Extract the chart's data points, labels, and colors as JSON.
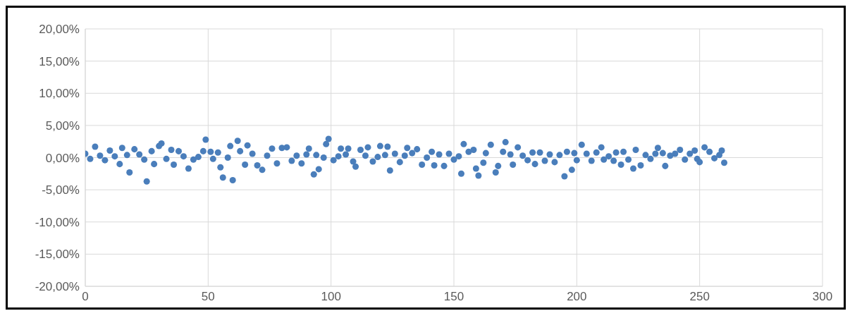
{
  "chart_data": {
    "type": "scatter",
    "marker": "circle",
    "grid": true,
    "legend": false,
    "xlim": [
      0,
      300
    ],
    "xticks": [
      0,
      50,
      100,
      150,
      200,
      250,
      300
    ],
    "ylim": [
      -20,
      20
    ],
    "yticks": [
      {
        "value": -20,
        "label": "-20,00%"
      },
      {
        "value": -15,
        "label": "-15,00%"
      },
      {
        "value": -10,
        "label": "-10,00%"
      },
      {
        "value": -5,
        "label": "-5,00%"
      },
      {
        "value": 0,
        "label": "0,00%"
      },
      {
        "value": 5,
        "label": "5,00%"
      },
      {
        "value": 10,
        "label": "10,00%"
      },
      {
        "value": 15,
        "label": "15,00%"
      },
      {
        "value": 20,
        "label": "20,00%"
      }
    ],
    "x": [
      0,
      2,
      4,
      6,
      8,
      10,
      12,
      14,
      15,
      17,
      18,
      20,
      22,
      24,
      25,
      27,
      28,
      30,
      31,
      33,
      35,
      36,
      38,
      40,
      42,
      44,
      46,
      48,
      49,
      51,
      52,
      54,
      55,
      56,
      58,
      59,
      60,
      62,
      63,
      65,
      66,
      68,
      70,
      72,
      74,
      76,
      78,
      80,
      82,
      84,
      86,
      88,
      90,
      91,
      93,
      94,
      95,
      97,
      98,
      99,
      101,
      103,
      104,
      106,
      107,
      109,
      110,
      112,
      114,
      115,
      117,
      119,
      120,
      122,
      123,
      124,
      126,
      128,
      130,
      131,
      133,
      135,
      137,
      139,
      141,
      142,
      144,
      146,
      148,
      150,
      152,
      153,
      154,
      156,
      158,
      159,
      160,
      162,
      163,
      165,
      167,
      168,
      170,
      171,
      173,
      174,
      176,
      178,
      180,
      182,
      183,
      185,
      187,
      189,
      191,
      193,
      195,
      196,
      198,
      199,
      200,
      202,
      204,
      206,
      208,
      210,
      211,
      213,
      215,
      216,
      218,
      219,
      221,
      223,
      224,
      226,
      228,
      230,
      232,
      233,
      235,
      236,
      238,
      240,
      242,
      244,
      246,
      248,
      249,
      250,
      252,
      254,
      256,
      258,
      259,
      260
    ],
    "series": [
      {
        "color": "#4a7ebb",
        "values": [
          0.6,
          -0.2,
          1.7,
          0.3,
          -0.4,
          1.1,
          0.2,
          -1.0,
          1.5,
          0.4,
          -2.3,
          1.3,
          0.5,
          -0.3,
          -3.7,
          1.0,
          -1.0,
          1.8,
          2.2,
          -0.2,
          1.2,
          -1.1,
          1.0,
          0.2,
          -1.7,
          -0.3,
          0.1,
          1.0,
          2.8,
          0.9,
          -0.2,
          0.8,
          -1.5,
          -3.1,
          0.0,
          1.8,
          -3.5,
          2.6,
          1.0,
          -1.1,
          1.9,
          0.6,
          -1.2,
          -1.9,
          0.3,
          1.4,
          -0.9,
          1.5,
          1.6,
          -0.5,
          0.3,
          -0.9,
          0.5,
          1.4,
          -2.6,
          0.4,
          -1.8,
          0.0,
          2.1,
          2.9,
          -0.4,
          0.2,
          1.4,
          0.5,
          1.4,
          -0.6,
          -1.4,
          1.2,
          0.3,
          1.6,
          -0.6,
          0.1,
          1.8,
          0.4,
          1.7,
          -2.0,
          0.6,
          -0.7,
          0.3,
          1.5,
          0.7,
          1.3,
          -1.1,
          0.0,
          0.9,
          -1.2,
          0.5,
          -1.3,
          0.6,
          -0.3,
          0.2,
          -2.5,
          2.1,
          0.9,
          1.2,
          -1.7,
          -2.8,
          -0.8,
          0.7,
          2.0,
          -2.3,
          -1.3,
          0.9,
          2.4,
          0.5,
          -1.1,
          1.6,
          0.3,
          -0.4,
          0.8,
          -1.0,
          0.8,
          -0.5,
          0.5,
          -0.7,
          0.4,
          -2.9,
          0.9,
          -1.9,
          0.7,
          -0.4,
          2.0,
          0.6,
          -0.5,
          0.8,
          1.6,
          -0.3,
          0.2,
          -0.5,
          0.8,
          -1.1,
          0.9,
          -0.3,
          -1.7,
          1.2,
          -1.2,
          0.4,
          -0.2,
          0.6,
          1.5,
          0.7,
          -1.3,
          0.3,
          0.6,
          1.2,
          -0.3,
          0.6,
          1.1,
          -0.2,
          -0.7,
          1.6,
          0.9,
          -0.1,
          0.4,
          1.1,
          -0.8
        ]
      }
    ]
  }
}
